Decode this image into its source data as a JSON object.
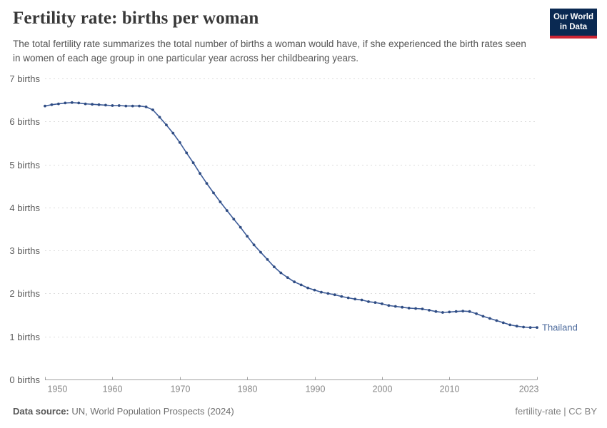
{
  "header": {
    "title": "Fertility rate: births per woman",
    "subtitle": "The total fertility rate summarizes the total number of births a woman would have, if she experienced the birth rates seen in women of each age group in one particular year across her childbearing years.",
    "logo": {
      "line1": "Our World",
      "line2": "in Data",
      "bg_color": "#0a2952",
      "accent_color": "#cd2534"
    }
  },
  "chart_data": {
    "type": "line",
    "title": "Fertility rate: births per woman",
    "xlabel": "",
    "ylabel": "births",
    "xlim": [
      1950,
      2023
    ],
    "ylim": [
      0,
      7
    ],
    "grid": "horizontal-dashed",
    "x_ticks": [
      1950,
      1960,
      1970,
      1980,
      1990,
      2000,
      2010,
      2023
    ],
    "y_ticks": [
      0,
      1,
      2,
      3,
      4,
      5,
      6,
      7
    ],
    "y_tick_label_format": "{v} births",
    "legend_position": "end-of-line-label",
    "series": [
      {
        "name": "Thailand",
        "color": "#3d5c99",
        "dot_color": "#2f4c82",
        "label_color": "#4c6a9c",
        "x": [
          1950,
          1951,
          1952,
          1953,
          1954,
          1955,
          1956,
          1957,
          1958,
          1959,
          1960,
          1961,
          1962,
          1963,
          1964,
          1965,
          1966,
          1967,
          1968,
          1969,
          1970,
          1971,
          1972,
          1973,
          1974,
          1975,
          1976,
          1977,
          1978,
          1979,
          1980,
          1981,
          1982,
          1983,
          1984,
          1985,
          1986,
          1987,
          1988,
          1989,
          1990,
          1991,
          1992,
          1993,
          1994,
          1995,
          1996,
          1997,
          1998,
          1999,
          2000,
          2001,
          2002,
          2003,
          2004,
          2005,
          2006,
          2007,
          2008,
          2009,
          2010,
          2011,
          2012,
          2013,
          2014,
          2015,
          2016,
          2017,
          2018,
          2019,
          2020,
          2021,
          2022,
          2023
        ],
        "values": [
          6.36,
          6.39,
          6.41,
          6.43,
          6.44,
          6.43,
          6.41,
          6.4,
          6.39,
          6.38,
          6.37,
          6.37,
          6.36,
          6.36,
          6.36,
          6.34,
          6.27,
          6.1,
          5.92,
          5.73,
          5.51,
          5.27,
          5.04,
          4.79,
          4.56,
          4.34,
          4.13,
          3.93,
          3.73,
          3.54,
          3.33,
          3.13,
          2.96,
          2.79,
          2.62,
          2.48,
          2.37,
          2.27,
          2.2,
          2.13,
          2.08,
          2.03,
          2.0,
          1.97,
          1.93,
          1.9,
          1.87,
          1.85,
          1.81,
          1.79,
          1.76,
          1.72,
          1.7,
          1.68,
          1.66,
          1.65,
          1.64,
          1.61,
          1.58,
          1.56,
          1.57,
          1.58,
          1.59,
          1.58,
          1.53,
          1.47,
          1.42,
          1.37,
          1.32,
          1.27,
          1.24,
          1.22,
          1.21,
          1.21
        ]
      }
    ]
  },
  "footer": {
    "source_label": "Data source:",
    "source_value": " UN, World Population Prospects (2024)",
    "attribution": "fertility-rate | CC BY"
  }
}
